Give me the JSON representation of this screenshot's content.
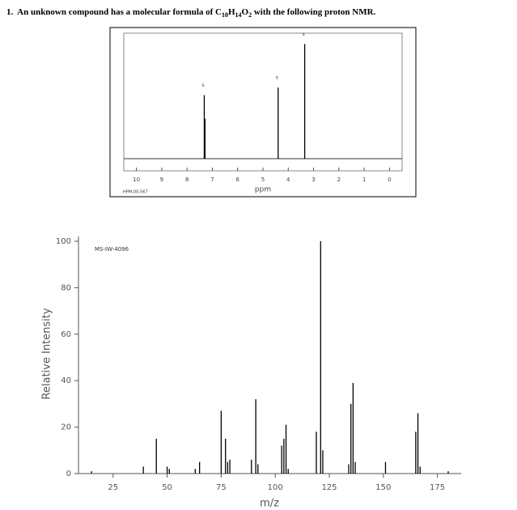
{
  "question": {
    "parts": [
      "1.  An unknown compound has a molecular formula of C",
      "H",
      "O",
      " with the following proton NMR."
    ],
    "subscripts": [
      "10",
      "14",
      "2"
    ]
  },
  "chart_data": [
    {
      "type": "stick",
      "code": "HPM-00-567",
      "x_label": "ppm",
      "xlim": [
        10.5,
        -0.5
      ],
      "xticks": [
        10,
        9,
        8,
        7,
        6,
        5,
        4,
        3,
        2,
        1,
        0
      ],
      "ylim": [
        0,
        100
      ],
      "x": [
        7.32,
        7.29,
        4.4,
        3.35
      ],
      "values": [
        51,
        32,
        57,
        92
      ],
      "peak_labels": [
        "s",
        null,
        "s",
        "s"
      ],
      "color": "#000000"
    },
    {
      "type": "stick",
      "code": "MS-IW-4096",
      "x_label": "m/z",
      "y_label": "Relative Intensity",
      "xlim": [
        9,
        186
      ],
      "xticks": [
        25,
        50,
        75,
        100,
        125,
        150,
        175
      ],
      "ylim": [
        0,
        100
      ],
      "yticks": [
        0,
        20,
        40,
        60,
        80,
        100
      ],
      "x": [
        15,
        39,
        45,
        50,
        51,
        63,
        65,
        75,
        77,
        78,
        79,
        89,
        91,
        92,
        103,
        104,
        105,
        106,
        119,
        121,
        122,
        134,
        135,
        136,
        137,
        151,
        165,
        166,
        167,
        180
      ],
      "values": [
        1,
        3,
        15,
        3,
        2,
        2,
        5,
        27,
        15,
        5,
        6,
        6,
        32,
        4,
        12,
        15,
        21,
        2,
        18,
        100,
        10,
        4,
        30,
        39,
        5,
        5,
        18,
        26,
        3,
        1
      ],
      "color": "#000000"
    }
  ]
}
